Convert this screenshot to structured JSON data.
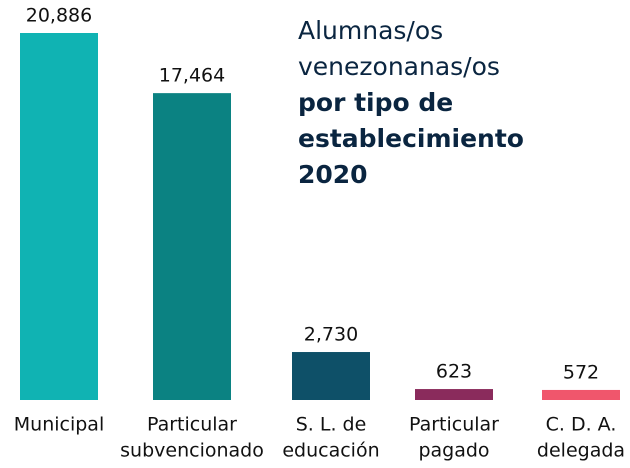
{
  "chart_data": {
    "type": "bar",
    "title": [
      "Alumnas/os",
      "venezonanas/os",
      "por tipo de",
      "establecimiento",
      "2020"
    ],
    "categories": [
      [
        "Municipal"
      ],
      [
        "Particular",
        "subvencionado"
      ],
      [
        "S. L. de",
        "educación"
      ],
      [
        "Particular",
        "pagado"
      ],
      [
        "C. D. A.",
        "delegada"
      ]
    ],
    "values": [
      20886,
      17464,
      2730,
      623,
      572
    ],
    "value_labels": [
      "20,886",
      "17,464",
      "2,730",
      "623",
      "572"
    ],
    "colors": [
      "#10b3b3",
      "#0b8282",
      "#0e5068",
      "#8a2b5c",
      "#f0566c"
    ],
    "ylim": [
      0,
      21000
    ]
  }
}
